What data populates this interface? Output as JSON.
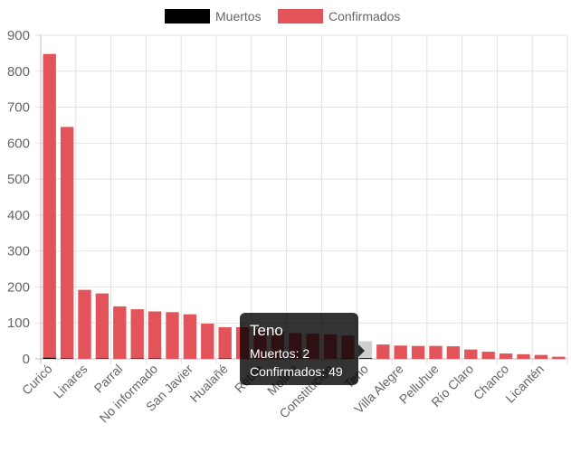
{
  "chart_data": {
    "type": "bar",
    "categories": [
      "Curicó",
      "",
      "Linares",
      "",
      "Parral",
      "",
      "No informado",
      "",
      "San Javier",
      "",
      "Hualañé",
      "",
      "Retiro",
      "",
      "Molina",
      "",
      "Constitución",
      "",
      "Teno",
      "",
      "Villa Alegre",
      "",
      "Pelluhue",
      "",
      "Río Claro",
      "",
      "Chanco",
      "",
      "Licantén",
      ""
    ],
    "series": [
      {
        "name": "Muertos",
        "color": "#000000",
        "values": [
          3,
          1,
          0,
          1,
          0,
          1,
          1,
          0,
          0,
          0,
          1,
          0,
          0,
          0,
          1,
          0,
          0,
          1,
          2,
          0,
          0,
          0,
          0,
          0,
          0,
          0,
          0,
          0,
          0,
          0
        ]
      },
      {
        "name": "Confirmados",
        "color": "#e2545a",
        "values": [
          848,
          645,
          192,
          182,
          146,
          138,
          132,
          130,
          124,
          98,
          88,
          88,
          80,
          76,
          72,
          70,
          68,
          65,
          49,
          40,
          37,
          36,
          36,
          35,
          26,
          20,
          15,
          13,
          11,
          6
        ]
      }
    ],
    "ylim": [
      0,
      900
    ],
    "yticks": [
      0,
      100,
      200,
      300,
      400,
      500,
      600,
      700,
      800,
      900
    ],
    "grid": true,
    "legend": "top",
    "highlight_index": 18,
    "tooltip": {
      "title": "Teno",
      "lines": [
        "Muertos: 2",
        "Confirmados: 49"
      ]
    }
  }
}
